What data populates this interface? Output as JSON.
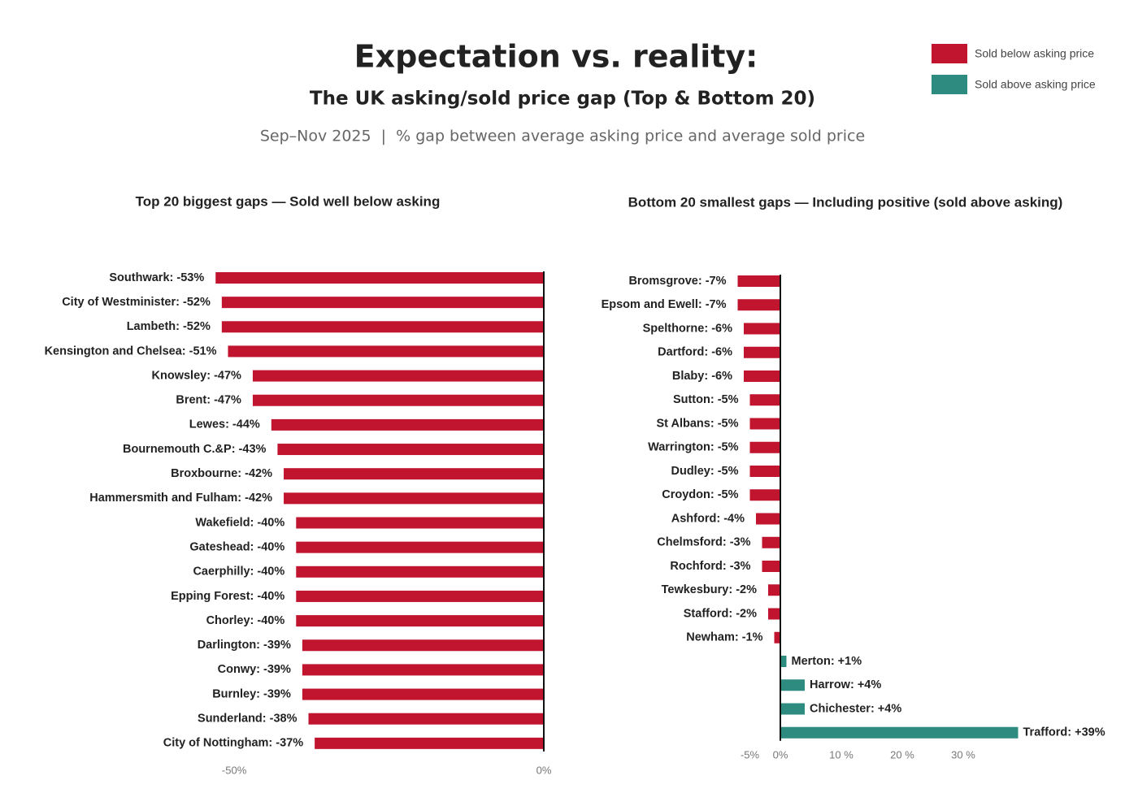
{
  "title": "Expectation vs. reality:",
  "subtitle": "The UK asking/sold price gap (Top & Bottom 20)",
  "caption": "Sep–Nov 2025  |  % gap between average asking price and average sold price",
  "legend": [
    {
      "name": "Sold below asking price",
      "color": "#c0142f"
    },
    {
      "name": "Sold above asking price",
      "color": "#2e8b80"
    }
  ],
  "chart_data": [
    {
      "type": "bar",
      "title": "Top 20 biggest gaps — Sold well below asking",
      "values": [
        -53,
        -52,
        -52,
        -51,
        -47,
        -47,
        -44,
        -43,
        -42,
        -42,
        -40,
        -40,
        -40,
        -40,
        -40,
        -39,
        -39,
        -39,
        -38,
        -37
      ],
      "value_labels": [
        "Southwark: -53%",
        "City of Westminister: -52%",
        "Lambeth: -52%",
        "Kensington and Chelsea: -51%",
        "Knowsley: -47%",
        "Brent: -47%",
        "Lewes: -44%",
        "Bournemouth C.&P: -43%",
        "Broxbourne: -42%",
        "Hammersmith and Fulham: -42%",
        "Wakefield: -40%",
        "Gateshead: -40%",
        "Caerphilly: -40%",
        "Epping Forest: -40%",
        "Chorley: -40%",
        "Darlington: -39%",
        "Conwy: -39%",
        "Burnley: -39%",
        "Sunderland: -38%",
        "City of Nottingham: -37%"
      ],
      "xlim": [
        -55,
        0
      ],
      "xticks": [
        {
          "value": -50,
          "label": "-50%"
        },
        {
          "value": 0,
          "label": "0%"
        }
      ]
    },
    {
      "type": "bar",
      "title": "Bottom 20 smallest gaps — Including positive (sold above asking)",
      "values": [
        -7,
        -7,
        -6,
        -6,
        -6,
        -5,
        -5,
        -5,
        -5,
        -5,
        -4,
        -3,
        -3,
        -2,
        -2,
        -1,
        1,
        4,
        4,
        39
      ],
      "value_labels": [
        "Bromsgrove: -7%",
        "Epsom and Ewell: -7%",
        "Spelthorne: -6%",
        "Dartford: -6%",
        "Blaby: -6%",
        "Sutton: -5%",
        "St Albans: -5%",
        "Warrington: -5%",
        "Dudley: -5%",
        "Croydon: -5%",
        "Ashford: -4%",
        "Chelmsford: -3%",
        "Rochford: -3%",
        "Tewkesbury: -2%",
        "Stafford: -2%",
        "Newham: -1%",
        "Merton: +1%",
        "Harrow: +4%",
        "Chichester: +4%",
        "Trafford: +39%"
      ],
      "xlim": [
        -8,
        40
      ],
      "xticks": [
        {
          "value": -5,
          "label": "-5%"
        },
        {
          "value": 0,
          "label": "0%"
        },
        {
          "value": 10,
          "label": "10 %"
        },
        {
          "value": 20,
          "label": "20 %"
        },
        {
          "value": 30,
          "label": "30 %"
        }
      ]
    }
  ]
}
